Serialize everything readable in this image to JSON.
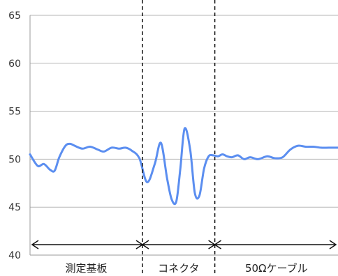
{
  "chart_data": {
    "type": "line",
    "title": "",
    "xlabel": "",
    "ylabel": "",
    "x_range": [
      0,
      100
    ],
    "ylim": [
      40,
      65
    ],
    "y_ticks": [
      40,
      45,
      50,
      55,
      60,
      65
    ],
    "grid": true,
    "legend": "none",
    "line_color": "#5b8ef0",
    "series": [
      {
        "x": [
          0,
          2.5,
          4.5,
          6.5,
          8,
          9.5,
          11.5,
          13,
          14.5,
          17,
          19.5,
          22,
          24,
          26.5,
          29,
          31,
          33,
          35.5,
          38,
          40.5,
          42.5,
          44.5,
          46,
          47.5,
          48.8,
          50.2,
          52,
          53.5,
          55,
          56.5,
          58,
          59.5,
          61,
          62.5,
          64,
          65.5,
          67.5,
          69.5,
          71.5,
          74,
          77,
          79.5,
          82,
          84.5,
          87,
          89.5,
          92,
          94.5,
          97,
          100
        ],
        "y": [
          50.5,
          49.3,
          49.5,
          48.9,
          48.8,
          50.2,
          51.4,
          51.6,
          51.4,
          51.1,
          51.3,
          51.0,
          50.8,
          51.2,
          51.1,
          51.2,
          50.9,
          50.1,
          47.6,
          49.5,
          51.7,
          48.0,
          45.8,
          45.6,
          49.0,
          53.2,
          51.0,
          46.5,
          46.2,
          49.0,
          50.3,
          50.4,
          50.3,
          50.5,
          50.3,
          50.2,
          50.4,
          50.0,
          50.2,
          50.0,
          50.3,
          50.1,
          50.2,
          51.0,
          51.4,
          51.3,
          51.3,
          51.2,
          51.2,
          51.2
        ]
      }
    ],
    "segments": [
      {
        "label": "測定基板",
        "from": 0,
        "to": 36.5
      },
      {
        "label": "コネクタ",
        "from": 36.5,
        "to": 60
      },
      {
        "label": "50Ωケーブル",
        "from": 60,
        "to": 100
      }
    ]
  }
}
